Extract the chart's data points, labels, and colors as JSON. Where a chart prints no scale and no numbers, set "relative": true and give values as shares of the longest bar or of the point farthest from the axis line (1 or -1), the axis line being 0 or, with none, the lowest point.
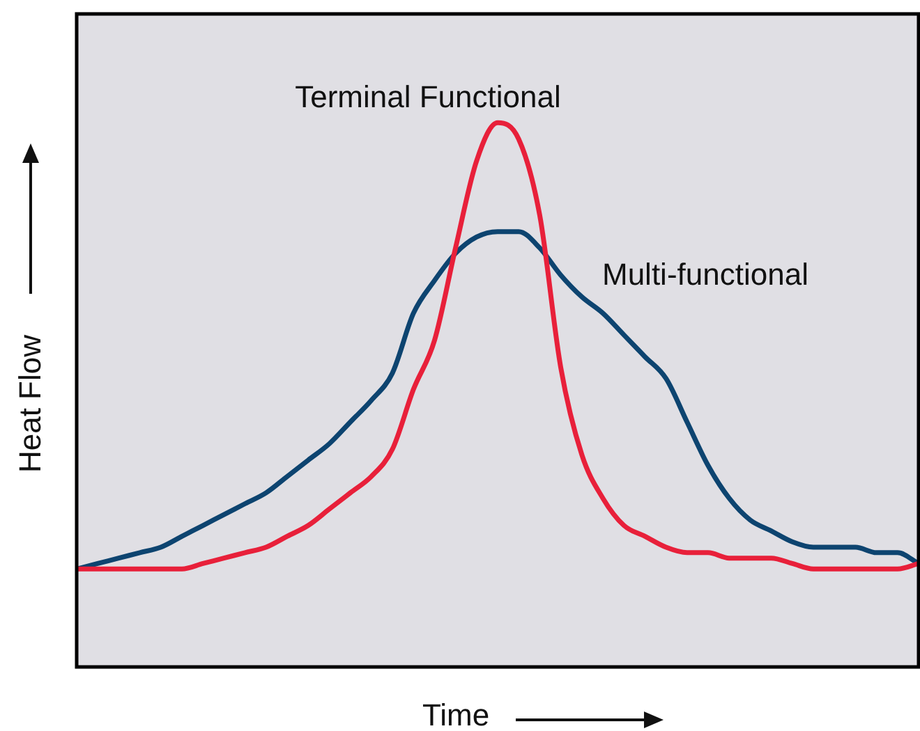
{
  "chart_data": {
    "type": "line",
    "relative": true,
    "xlabel": "Time",
    "ylabel": "Heat Flow",
    "grid": false,
    "legend": false,
    "tick_labels": false,
    "marker": "none",
    "line_style": "solid",
    "categories": [
      null,
      null,
      null,
      null,
      null,
      null,
      null,
      null,
      null,
      null,
      null,
      null,
      null,
      null,
      null,
      null,
      null,
      null,
      null,
      null,
      null,
      null,
      null,
      null,
      null,
      null,
      null,
      null,
      null,
      null,
      null,
      null,
      null,
      null,
      null,
      null,
      null,
      null,
      null,
      null,
      null
    ],
    "series": [
      {
        "name": "Terminal Functional",
        "color": "#e8203a",
        "values": [
          0.18,
          0.18,
          0.18,
          0.18,
          0.18,
          0.18,
          0.19,
          0.2,
          0.21,
          0.22,
          0.24,
          0.26,
          0.29,
          0.32,
          0.35,
          0.4,
          0.51,
          0.6,
          0.77,
          0.93,
          1,
          0.97,
          0.83,
          0.55,
          0.39,
          0.31,
          0.26,
          0.24,
          0.22,
          0.21,
          0.21,
          0.2,
          0.2,
          0.2,
          0.19,
          0.18,
          0.18,
          0.18,
          0.18,
          0.18,
          0.19
        ]
      },
      {
        "name": "Multi-functional",
        "color": "#0d4470",
        "values": [
          0.18,
          0.19,
          0.2,
          0.21,
          0.22,
          0.24,
          0.26,
          0.28,
          0.3,
          0.32,
          0.35,
          0.38,
          0.41,
          0.45,
          0.49,
          0.54,
          0.65,
          0.71,
          0.76,
          0.79,
          0.8,
          0.8,
          0.77,
          0.72,
          0.68,
          0.65,
          0.61,
          0.57,
          0.53,
          0.45,
          0.37,
          0.31,
          0.27,
          0.25,
          0.23,
          0.22,
          0.22,
          0.22,
          0.21,
          0.21,
          0.19
        ]
      }
    ]
  }
}
